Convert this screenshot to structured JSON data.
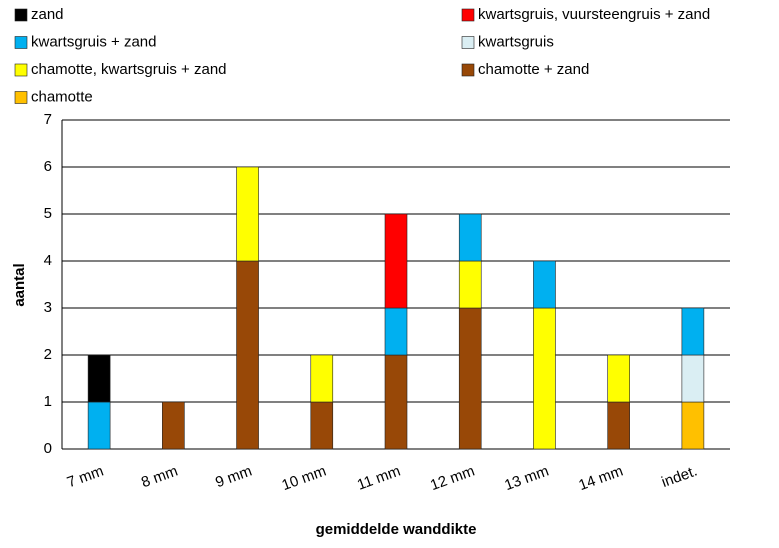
{
  "chart_data": {
    "type": "stacked_bar",
    "categories": [
      "7 mm",
      "8 mm",
      "9 mm",
      "10 mm",
      "11 mm",
      "12 mm",
      "13 mm",
      "14 mm",
      "indet."
    ],
    "series": [
      {
        "name": "zand",
        "color": "#000000",
        "values": [
          1,
          0,
          0,
          0,
          0,
          0,
          0,
          0,
          0
        ]
      },
      {
        "name": "kwartsgruis, vuursteengruis + zand",
        "color": "#ff0000",
        "values": [
          0,
          0,
          0,
          0,
          2,
          0,
          0,
          0,
          0
        ]
      },
      {
        "name": "kwartsgruis + zand",
        "color": "#00b0f0",
        "values": [
          1,
          0,
          0,
          0,
          1,
          1,
          1,
          0,
          1
        ]
      },
      {
        "name": "kwartsgruis",
        "color": "#daeef3",
        "values": [
          0,
          0,
          0,
          0,
          0,
          0,
          0,
          0,
          1
        ]
      },
      {
        "name": "chamotte, kwartsgruis + zand",
        "color": "#ffff00",
        "values": [
          0,
          0,
          2,
          1,
          0,
          1,
          3,
          1,
          0
        ]
      },
      {
        "name": "chamotte + zand",
        "color": "#984807",
        "values": [
          0,
          1,
          4,
          1,
          2,
          3,
          0,
          1,
          0
        ]
      },
      {
        "name": "chamotte",
        "color": "#ffc000",
        "values": [
          0,
          0,
          0,
          0,
          0,
          0,
          0,
          0,
          1
        ]
      }
    ],
    "ylim": [
      0,
      7
    ],
    "yticks": [
      0,
      1,
      2,
      3,
      4,
      5,
      6,
      7
    ],
    "grid": true,
    "y_label": "aantal",
    "x_label": "gemiddelde wanddikte",
    "legend": "top"
  }
}
